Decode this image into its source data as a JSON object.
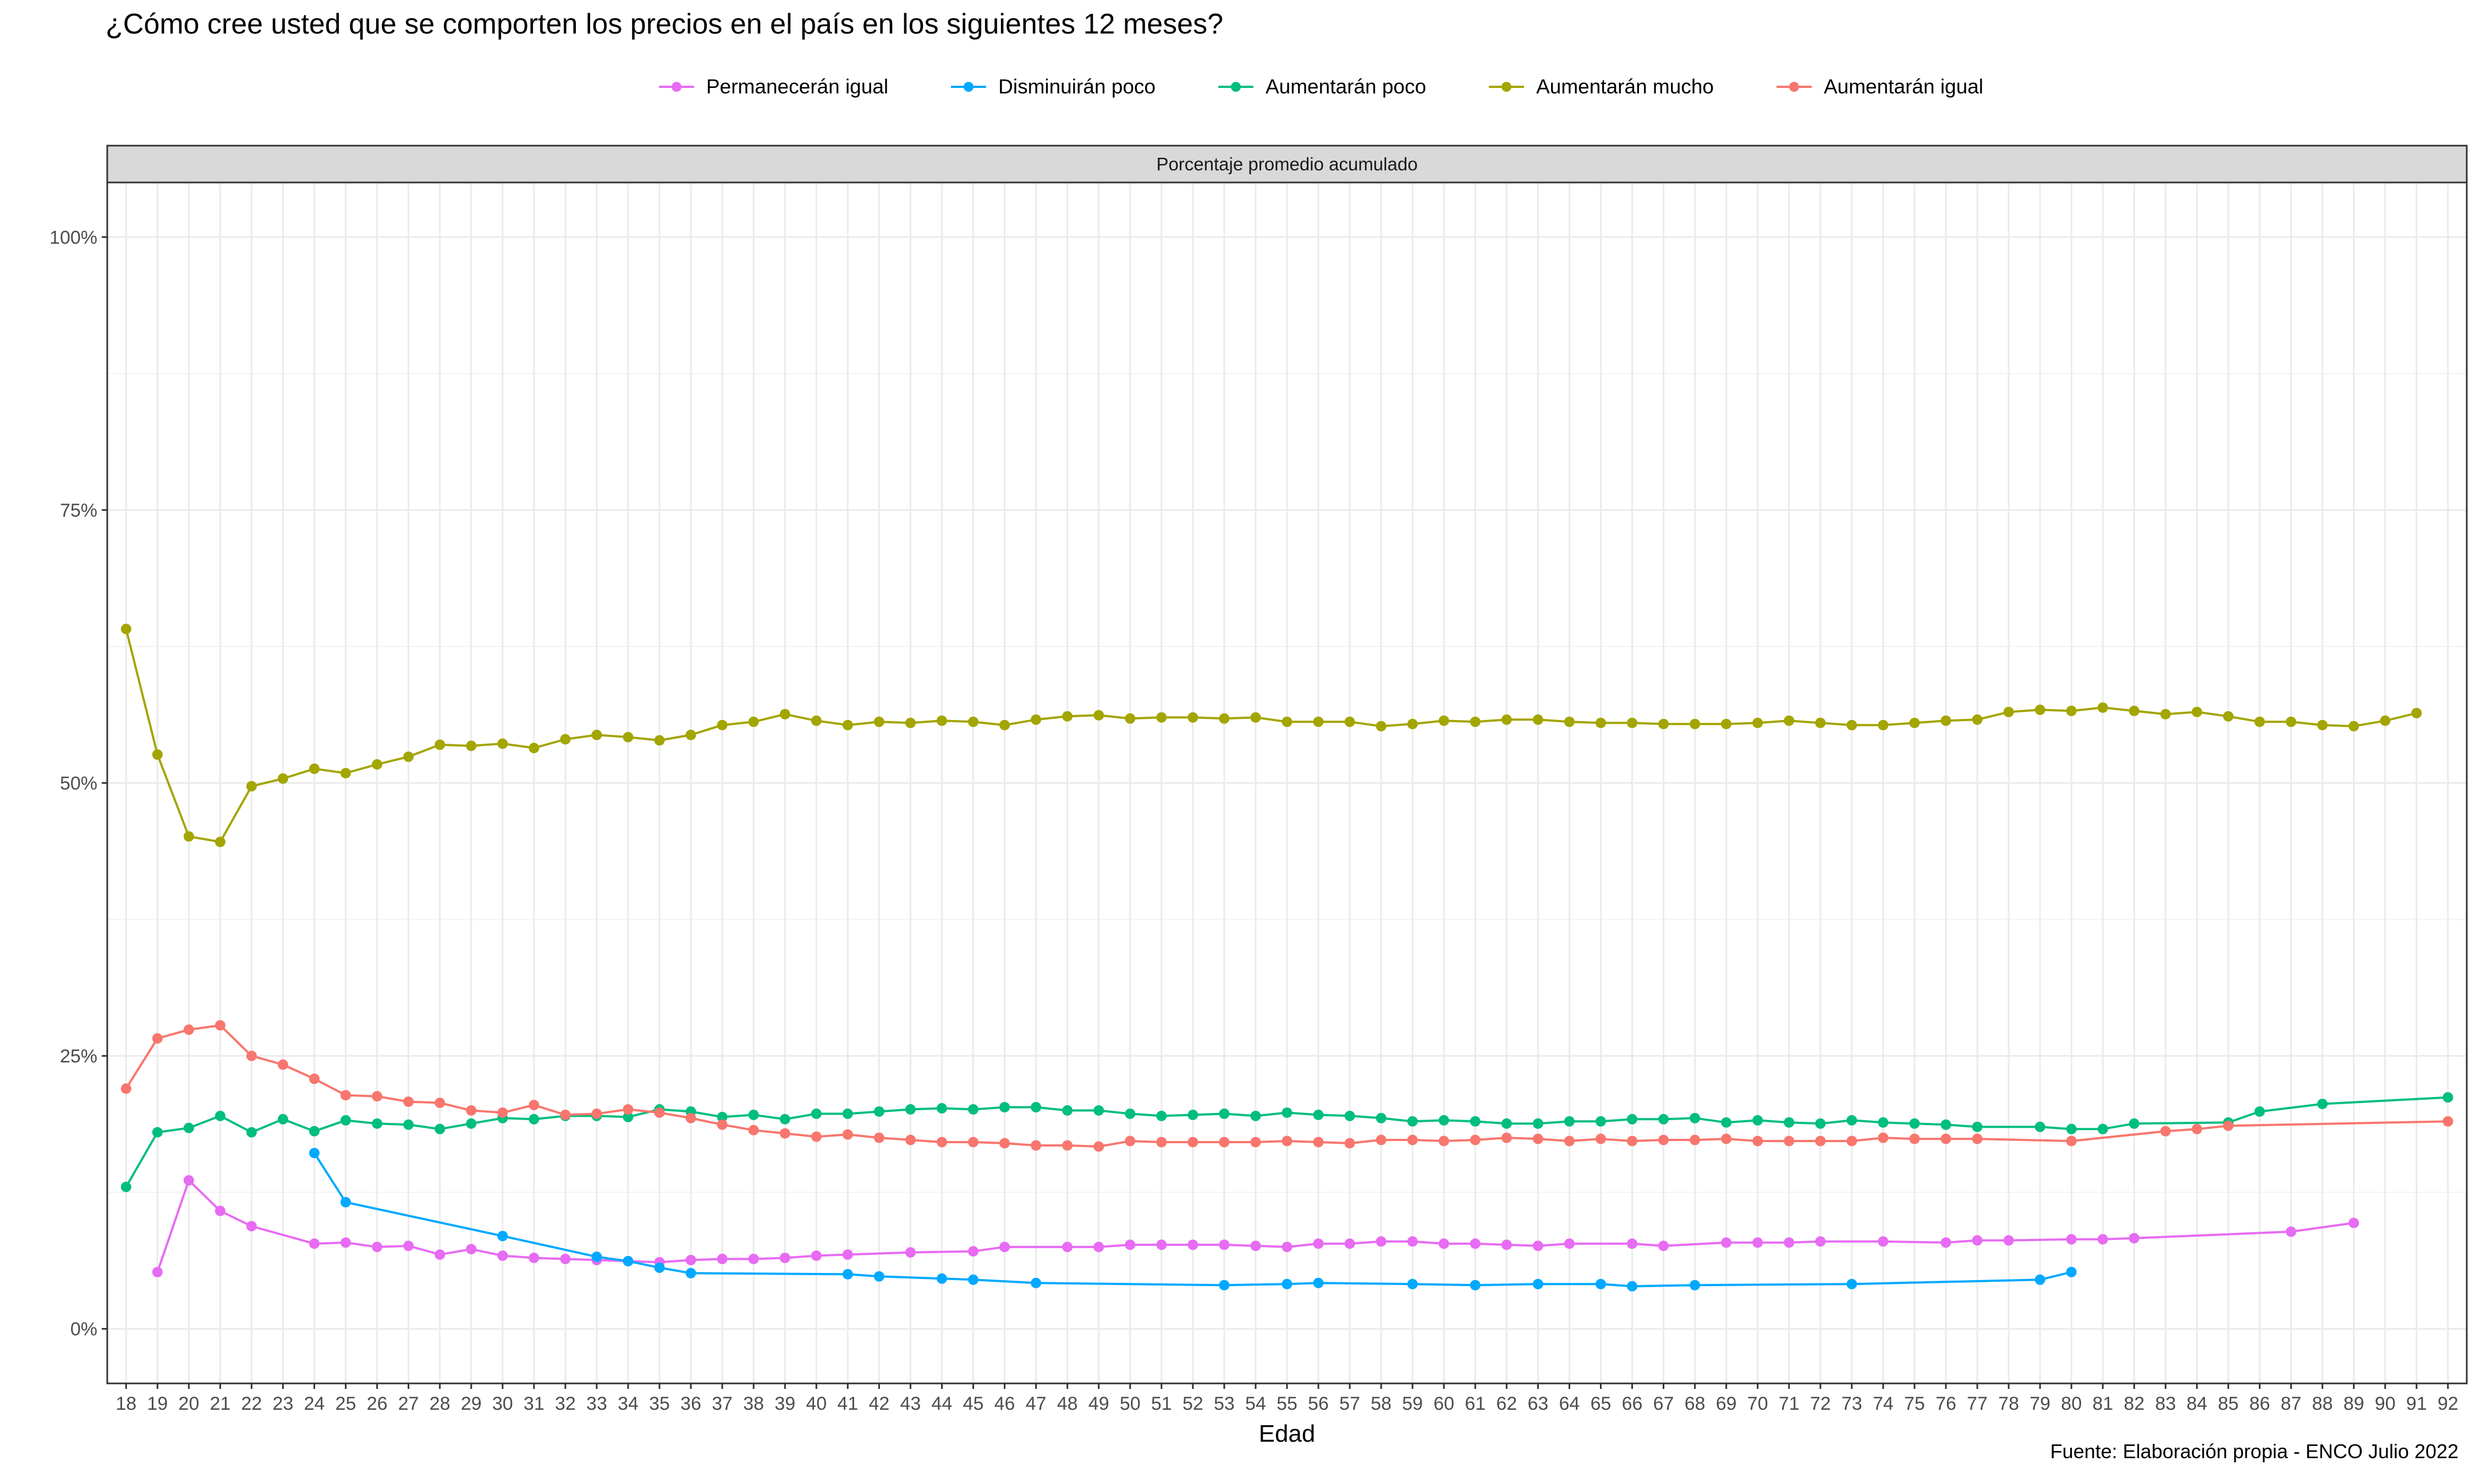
{
  "title": "¿Cómo cree usted que se comporten los precios en el país en los siguientes 12 meses?",
  "caption": "Fuente: Elaboración propia - ENCO Julio 2022",
  "chart_data": {
    "type": "line",
    "title": "¿Cómo cree usted que se comporten los precios en el país en los siguientes 12 meses?",
    "facet_label": "Porcentaje promedio acumulado",
    "xlabel": "Edad",
    "ylabel": "",
    "xlim": [
      18,
      92
    ],
    "ylim": [
      0,
      100
    ],
    "y_ticks": [
      0,
      25,
      50,
      75,
      100
    ],
    "y_tick_labels": [
      "0%",
      "25%",
      "50%",
      "75%",
      "100%"
    ],
    "x_ticks": [
      18,
      19,
      20,
      21,
      22,
      23,
      24,
      25,
      26,
      27,
      28,
      29,
      30,
      31,
      32,
      33,
      34,
      35,
      36,
      37,
      38,
      39,
      40,
      41,
      42,
      43,
      44,
      45,
      46,
      47,
      48,
      49,
      50,
      51,
      52,
      53,
      54,
      55,
      56,
      57,
      58,
      59,
      60,
      61,
      62,
      63,
      64,
      65,
      66,
      67,
      68,
      69,
      70,
      71,
      72,
      73,
      74,
      75,
      76,
      77,
      78,
      79,
      80,
      81,
      82,
      83,
      84,
      85,
      86,
      87,
      88,
      89,
      90,
      91,
      92
    ],
    "grid": true,
    "legend_position": "top",
    "series": [
      {
        "name": "Permanecerán igual",
        "color": "#E76BF3",
        "x": [
          19,
          20,
          21,
          22,
          24,
          25,
          26,
          27,
          28,
          29,
          30,
          31,
          32,
          33,
          34,
          35,
          36,
          37,
          38,
          39,
          40,
          41,
          43,
          45,
          46,
          48,
          49,
          50,
          51,
          52,
          53,
          54,
          55,
          56,
          57,
          58,
          59,
          60,
          61,
          62,
          63,
          64,
          66,
          67,
          69,
          70,
          71,
          72,
          74,
          76,
          77,
          78,
          80,
          81,
          82,
          87,
          89
        ],
        "y": [
          5.2,
          13.6,
          10.8,
          9.4,
          7.8,
          7.9,
          7.5,
          7.6,
          6.8,
          7.3,
          6.7,
          6.5,
          6.4,
          6.3,
          6.2,
          6.1,
          6.3,
          6.4,
          6.4,
          6.5,
          6.7,
          6.8,
          7.0,
          7.1,
          7.5,
          7.5,
          7.5,
          7.7,
          7.7,
          7.7,
          7.7,
          7.6,
          7.5,
          7.8,
          7.8,
          8.0,
          8.0,
          7.8,
          7.8,
          7.7,
          7.6,
          7.8,
          7.8,
          7.6,
          7.9,
          7.9,
          7.9,
          8.0,
          8.0,
          7.9,
          8.1,
          8.1,
          8.2,
          8.2,
          8.3,
          8.9,
          9.7
        ]
      },
      {
        "name": "Disminuirán poco",
        "color": "#00A9FF",
        "x": [
          24,
          25,
          30,
          33,
          34,
          35,
          36,
          41,
          42,
          44,
          45,
          47,
          53,
          55,
          56,
          59,
          61,
          63,
          65,
          66,
          68,
          73,
          79,
          80
        ],
        "y": [
          16.1,
          11.6,
          8.5,
          6.6,
          6.2,
          5.6,
          5.1,
          5.0,
          4.8,
          4.6,
          4.5,
          4.2,
          4.0,
          4.1,
          4.2,
          4.1,
          4.0,
          4.1,
          4.1,
          3.9,
          4.0,
          4.1,
          4.5,
          5.2
        ]
      },
      {
        "name": "Aumentarán poco",
        "color": "#00BE7D",
        "x": [
          18,
          19,
          20,
          21,
          22,
          23,
          24,
          25,
          26,
          27,
          28,
          29,
          30,
          31,
          32,
          33,
          34,
          35,
          36,
          37,
          38,
          39,
          40,
          41,
          42,
          43,
          44,
          45,
          46,
          47,
          48,
          49,
          50,
          51,
          52,
          53,
          54,
          55,
          56,
          57,
          58,
          59,
          60,
          61,
          62,
          63,
          64,
          65,
          66,
          67,
          68,
          69,
          70,
          71,
          72,
          73,
          74,
          75,
          76,
          77,
          79,
          80,
          81,
          82,
          85,
          86,
          88,
          92
        ],
        "y": [
          13.0,
          18.0,
          18.4,
          19.5,
          18.0,
          19.2,
          18.1,
          19.1,
          18.8,
          18.7,
          18.3,
          18.8,
          19.3,
          19.2,
          19.5,
          19.5,
          19.4,
          20.1,
          19.9,
          19.4,
          19.6,
          19.2,
          19.7,
          19.7,
          19.9,
          20.1,
          20.2,
          20.1,
          20.3,
          20.3,
          20.0,
          20.0,
          19.7,
          19.5,
          19.6,
          19.7,
          19.5,
          19.8,
          19.6,
          19.5,
          19.3,
          19.0,
          19.1,
          19.0,
          18.8,
          18.8,
          19.0,
          19.0,
          19.2,
          19.2,
          19.3,
          18.9,
          19.1,
          18.9,
          18.8,
          19.1,
          18.9,
          18.8,
          18.7,
          18.5,
          18.5,
          18.3,
          18.3,
          18.8,
          18.9,
          19.9,
          20.6,
          21.2
        ]
      },
      {
        "name": "Aumentarán mucho",
        "color": "#A3A500",
        "x": [
          18,
          19,
          20,
          21,
          22,
          23,
          24,
          25,
          26,
          27,
          28,
          29,
          30,
          31,
          32,
          33,
          34,
          35,
          36,
          37,
          38,
          39,
          40,
          41,
          42,
          43,
          44,
          45,
          46,
          47,
          48,
          49,
          50,
          51,
          52,
          53,
          54,
          55,
          56,
          57,
          58,
          59,
          60,
          61,
          62,
          63,
          64,
          65,
          66,
          67,
          68,
          69,
          70,
          71,
          72,
          73,
          74,
          75,
          76,
          77,
          78,
          79,
          80,
          81,
          82,
          83,
          84,
          85,
          86,
          87,
          88,
          89,
          90,
          91
        ],
        "y": [
          64.1,
          52.6,
          45.1,
          44.6,
          49.7,
          50.4,
          51.3,
          50.9,
          51.7,
          52.4,
          53.5,
          53.4,
          53.6,
          53.2,
          54.0,
          54.4,
          54.2,
          53.9,
          54.4,
          55.3,
          55.6,
          56.3,
          55.7,
          55.3,
          55.6,
          55.5,
          55.7,
          55.6,
          55.3,
          55.8,
          56.1,
          56.2,
          55.9,
          56.0,
          56.0,
          55.9,
          56.0,
          55.6,
          55.6,
          55.6,
          55.2,
          55.4,
          55.7,
          55.6,
          55.8,
          55.8,
          55.6,
          55.5,
          55.5,
          55.4,
          55.4,
          55.4,
          55.5,
          55.7,
          55.5,
          55.3,
          55.3,
          55.5,
          55.7,
          55.8,
          56.5,
          56.7,
          56.6,
          56.9,
          56.6,
          56.3,
          56.5,
          56.1,
          55.6,
          55.6,
          55.3,
          55.2,
          55.7,
          56.4
        ]
      },
      {
        "name": "Aumentarán igual",
        "color": "#F8766D",
        "x": [
          18,
          19,
          20,
          21,
          22,
          23,
          24,
          25,
          26,
          27,
          28,
          29,
          30,
          31,
          32,
          33,
          34,
          35,
          36,
          37,
          38,
          39,
          40,
          41,
          42,
          43,
          44,
          45,
          46,
          47,
          48,
          49,
          50,
          51,
          52,
          53,
          54,
          55,
          56,
          57,
          58,
          59,
          60,
          61,
          62,
          63,
          64,
          65,
          66,
          67,
          68,
          69,
          70,
          71,
          72,
          73,
          74,
          75,
          76,
          77,
          80,
          83,
          84,
          85,
          92
        ],
        "y": [
          22.0,
          26.6,
          27.4,
          27.8,
          25.0,
          24.2,
          22.9,
          21.4,
          21.3,
          20.8,
          20.7,
          20.0,
          19.8,
          20.5,
          19.6,
          19.7,
          20.1,
          19.8,
          19.3,
          18.7,
          18.2,
          17.9,
          17.6,
          17.8,
          17.5,
          17.3,
          17.1,
          17.1,
          17.0,
          16.8,
          16.8,
          16.7,
          17.2,
          17.1,
          17.1,
          17.1,
          17.1,
          17.2,
          17.1,
          17.0,
          17.3,
          17.3,
          17.2,
          17.3,
          17.5,
          17.4,
          17.2,
          17.4,
          17.2,
          17.3,
          17.3,
          17.4,
          17.2,
          17.2,
          17.2,
          17.2,
          17.5,
          17.4,
          17.4,
          17.4,
          17.2,
          18.1,
          18.3,
          18.6,
          19.0
        ]
      }
    ]
  }
}
